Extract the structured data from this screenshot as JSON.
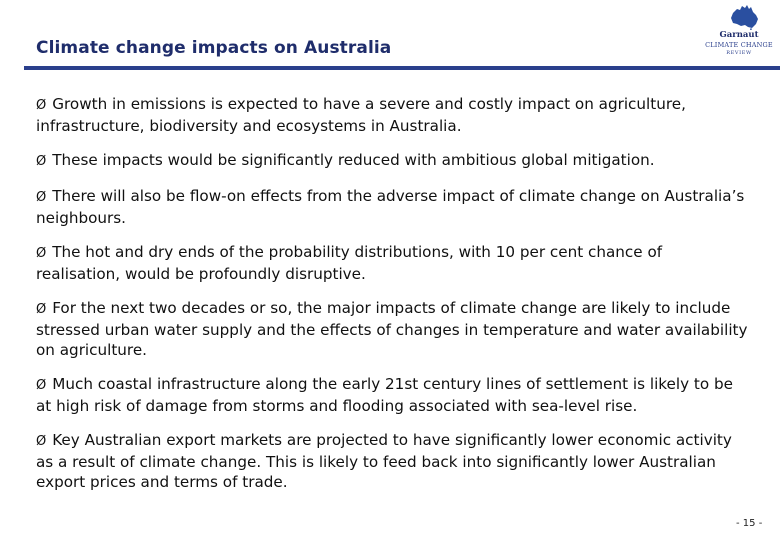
{
  "slide": {
    "title": "Climate change impacts on Australia",
    "page_number": "- 15 -"
  },
  "logo": {
    "name": "Garnaut",
    "subtitle": "CLIMATE CHANGE",
    "subtitle2": "REVIEW"
  },
  "bullet_glyph": "Ø",
  "bullets": [
    "Growth in emissions is expected to have a severe and costly impact on agriculture, infrastructure, biodiversity and ecosystems in Australia.",
    "These impacts would be significantly reduced with ambitious global mitigation.",
    "There will also be flow-on effects from the adverse impact of climate change on Australia’s neighbours.",
    "The hot and dry ends of the probability distributions, with 10 per cent chance of realisation, would be profoundly disruptive.",
    "For the next two decades or so, the major impacts of climate change are likely to include stressed urban water supply and the effects of changes in temperature and water availability on agriculture.",
    "Much coastal infrastructure along the early 21st century lines of settlement is likely to be at high risk of damage from storms and flooding associated with sea-level rise.",
    "Key Australian export markets are projected to have significantly lower economic activity as a result of climate change. This is likely to feed back into significantly lower Australian export prices and terms of trade."
  ],
  "colors": {
    "title": "#1f2d6b",
    "rule": "#2a3f8c",
    "logo": "#2a4fa0"
  }
}
